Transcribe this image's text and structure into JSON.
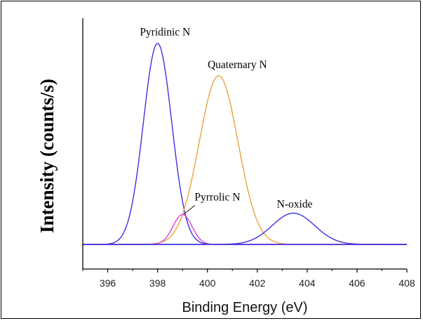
{
  "chart_data": {
    "type": "line",
    "title": "",
    "xlabel": "Binding Energy (eV)",
    "ylabel": "Intensity (counts/s)",
    "xlim": [
      395,
      408
    ],
    "ylim": [
      0,
      1.0
    ],
    "xticks": [
      396,
      398,
      400,
      402,
      404,
      406,
      408
    ],
    "grid": false,
    "series": [
      {
        "name": "Pyridinic N",
        "type": "gaussian",
        "center": 398.0,
        "amplitude": 0.9,
        "sigma": 0.57,
        "color": "#3a32e0"
      },
      {
        "name": "Quaternary N",
        "type": "gaussian",
        "center": 400.45,
        "amplitude": 0.755,
        "sigma": 0.78,
        "color": "#f0a040"
      },
      {
        "name": "Pyrrolic N",
        "type": "gaussian",
        "center": 399.0,
        "amplitude": 0.134,
        "sigma": 0.38,
        "color": "#e040d0"
      },
      {
        "name": "N-oxide",
        "type": "gaussian",
        "center": 403.45,
        "amplitude": 0.14,
        "sigma": 0.85,
        "color": "#3a32e0"
      }
    ],
    "baseline_color": "#3a32e0",
    "annotations": [
      {
        "text": "Pyridinic N",
        "x": 398.3,
        "y": 0.935
      },
      {
        "text": "Quaternary N",
        "x": 401.2,
        "y": 0.79
      },
      {
        "text": "Pyrrolic N",
        "x": 400.4,
        "y": 0.196
      },
      {
        "text": "N-oxide",
        "x": 403.5,
        "y": 0.165
      }
    ],
    "arrow": {
      "from": [
        399.5,
        0.175
      ],
      "to": [
        399.05,
        0.135
      ]
    }
  }
}
